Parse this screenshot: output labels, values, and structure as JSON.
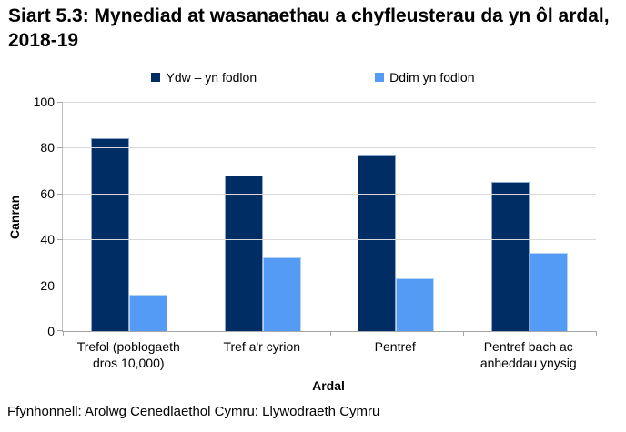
{
  "title": "Siart 5.3: Mynediad at wasanaethau a chyfleusterau da yn ôl ardal, 2018-19",
  "source": "Ffynhonnell: Arolwg Cenedlaethol Cymru: Llywodraeth Cymru",
  "colors": {
    "series_satisfied": "#002d64",
    "series_not_satisfied": "#549bf5",
    "gridline": "#d9d9d9",
    "axis": "#a6a6a6"
  },
  "chart_data": {
    "type": "bar",
    "title": "Siart 5.3: Mynediad at wasanaethau a chyfleusterau da yn ôl ardal, 2018-19",
    "categories": [
      "Trefol (poblogaeth dros 10,000)",
      "Tref a'r cyrion",
      "Pentref",
      "Pentref bach ac anheddau ynysig"
    ],
    "series": [
      {
        "name": "Ydw – yn fodlon",
        "color": "#002d64",
        "values": [
          84,
          68,
          77,
          65
        ]
      },
      {
        "name": "Ddim yn fodlon",
        "color": "#549bf5",
        "values": [
          16,
          32,
          23,
          34
        ]
      }
    ],
    "xlabel": "Ardal",
    "ylabel": "Canran",
    "ylim": [
      0,
      100
    ],
    "yticks": [
      0,
      20,
      40,
      60,
      80,
      100
    ],
    "grid": true,
    "legend_position": "top"
  }
}
